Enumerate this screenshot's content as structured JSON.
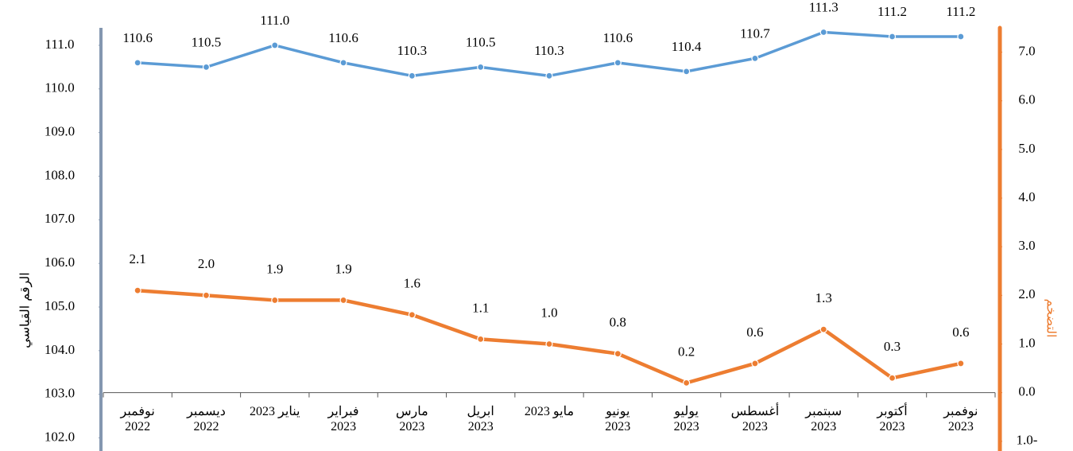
{
  "chart_data": {
    "type": "line",
    "y_label": "الرقم القياسي",
    "y2_label": "التضخم",
    "categories": [
      "نوفمبر 2022",
      "ديسمبر 2022",
      "يناير 2023",
      "فبراير 2023",
      "مارس 2023",
      "ابريل 2023",
      "مايو 2023",
      "يونيو 2023",
      "يوليو 2023",
      "أغسطس 2023",
      "سبتمبر 2023",
      "أكتوبر 2023",
      "نوفمبر 2023"
    ],
    "series": [
      {
        "color": "#5b9bd5",
        "axis": "y",
        "values": [
          110.6,
          110.5,
          111.0,
          110.6,
          110.3,
          110.5,
          110.3,
          110.6,
          110.4,
          110.7,
          111.3,
          111.2,
          111.2
        ],
        "value_labels": [
          "110.6",
          "110.5",
          "111.0",
          "110.6",
          "110.3",
          "110.5",
          "110.3",
          "110.6",
          "110.4",
          "110.7",
          "111.3",
          "111.2",
          "111.2"
        ]
      },
      {
        "color": "#ed7d31",
        "axis": "y2",
        "values": [
          2.1,
          2.0,
          1.9,
          1.9,
          1.6,
          1.1,
          1.0,
          0.8,
          0.2,
          0.6,
          1.3,
          0.3,
          0.6
        ],
        "value_labels": [
          "2.1",
          "2.0",
          "1.9",
          "1.9",
          "1.6",
          "1.1",
          "1.0",
          "0.8",
          "0.2",
          "0.6",
          "1.3",
          "0.3",
          "0.6"
        ]
      }
    ],
    "ylim": [
      101.7,
      111.4
    ],
    "yticks": [
      {
        "value": 102,
        "label": "102.0"
      },
      {
        "value": 103,
        "label": "103.0"
      },
      {
        "value": 104,
        "label": "104.0"
      },
      {
        "value": 105,
        "label": "105.0"
      },
      {
        "value": 106,
        "label": "106.0"
      },
      {
        "value": 107,
        "label": "107.0"
      },
      {
        "value": 108,
        "label": "108.0"
      },
      {
        "value": 109,
        "label": "109.0"
      },
      {
        "value": 110,
        "label": "110.0"
      },
      {
        "value": 111,
        "label": "111.0"
      }
    ],
    "y2lim": [
      -1.2,
      7.5
    ],
    "y2ticks": [
      {
        "value": -1,
        "label": "1.0-"
      },
      {
        "value": 0,
        "label": "0.0"
      },
      {
        "value": 1,
        "label": "1.0"
      },
      {
        "value": 2,
        "label": "2.0"
      },
      {
        "value": 3,
        "label": "3.0"
      },
      {
        "value": 4,
        "label": "4.0"
      },
      {
        "value": 5,
        "label": "5.0"
      },
      {
        "value": 6,
        "label": "6.0"
      },
      {
        "value": 7,
        "label": "7.0"
      }
    ],
    "left_axis_color": "#8497b0"
  }
}
